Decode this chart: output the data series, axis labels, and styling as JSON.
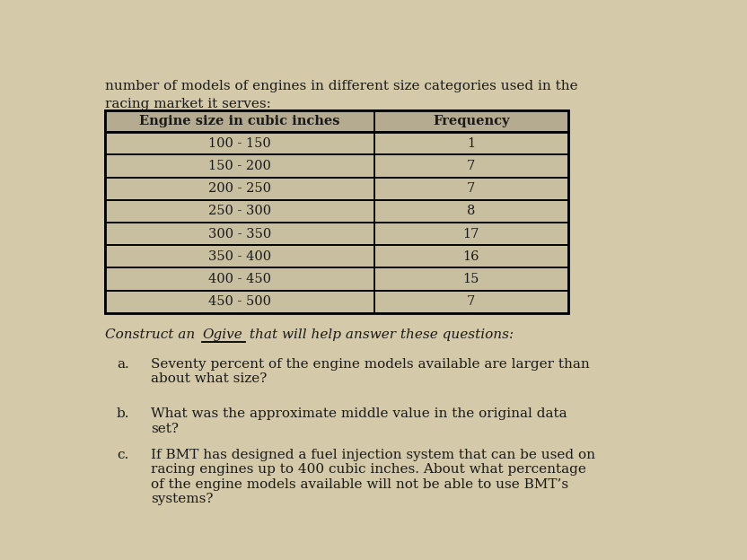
{
  "title_line1": "number of models of engines in different size categories used in the",
  "title_line2": "racing market it serves:",
  "col1_header": "Engine size in cubic inches",
  "col2_header": "Frequency",
  "rows": [
    [
      "100 - 150",
      "1"
    ],
    [
      "150 - 200",
      "7"
    ],
    [
      "200 - 250",
      "7"
    ],
    [
      "250 - 300",
      "8"
    ],
    [
      "300 - 350",
      "17"
    ],
    [
      "350 - 400",
      "16"
    ],
    [
      "400 - 450",
      "15"
    ],
    [
      "450 - 500",
      "7"
    ]
  ],
  "question_a": "Seventy percent of the engine models available are larger than\nabout what size?",
  "question_b": "What was the approximate middle value in the original data\nset?",
  "question_c": "If BMT has designed a fuel injection system that can be used on\nracing engines up to 400 cubic inches. About what percentage\nof the engine models available will not be able to use BMT’s\nsystems?",
  "bg_color": "#d4c9a8",
  "table_bg": "#c8bfa0",
  "text_color": "#1a1a1a",
  "header_bg": "#b5ab90"
}
